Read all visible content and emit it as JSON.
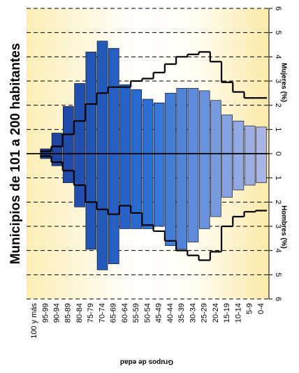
{
  "chart_data": {
    "type": "pyramid",
    "title": "Municipios de 101 a 200 habitantes",
    "x_label": "Grupos de edad",
    "women_label": "Mujeres (%)",
    "men_label": "Hombres (%)",
    "categories": [
      "100 y más",
      "95-99",
      "90-94",
      "85-89",
      "80-84",
      "75-79",
      "70-74",
      "65-69",
      "60-64",
      "55-59",
      "50-54",
      "45-49",
      "40-44",
      "35-39",
      "30-34",
      "25-29",
      "20-24",
      "15-19",
      "10-14",
      "5-9",
      "0-4"
    ],
    "women": {
      "values": [
        0,
        0.2,
        0.85,
        1.95,
        2.9,
        4.2,
        4.65,
        4.35,
        2.85,
        2.65,
        2.25,
        2.1,
        2.5,
        2.7,
        2.7,
        2.6,
        2.2,
        1.6,
        1.35,
        1.15,
        1.1
      ],
      "reference": [
        null,
        0.1,
        0.3,
        0.8,
        1.35,
        2.05,
        2.5,
        2.75,
        2.75,
        3.0,
        3.1,
        3.35,
        3.7,
        4.0,
        4.1,
        4.2,
        3.8,
        2.95,
        2.55,
        2.3,
        2.3
      ]
    },
    "men": {
      "values": [
        0,
        0.2,
        0.5,
        1.2,
        2.2,
        3.95,
        4.8,
        4.55,
        3.1,
        3.1,
        3.1,
        3.0,
        3.8,
        3.95,
        3.65,
        3.1,
        2.6,
        1.8,
        1.5,
        1.3,
        1.2
      ],
      "reference": [
        null,
        0.1,
        0.35,
        0.7,
        1.3,
        2.0,
        2.3,
        2.5,
        2.15,
        2.45,
        2.95,
        3.2,
        3.6,
        4.0,
        4.2,
        4.4,
        4.05,
        3.0,
        2.6,
        2.4,
        2.35
      ]
    },
    "colors": [
      "#1b3a96",
      "#2b6fd4",
      "#aab6e6"
    ],
    "reference_color": "#000000",
    "ylim": [
      -6,
      6
    ],
    "yticks": [
      {
        "value": -6,
        "label": "6"
      },
      {
        "value": -5,
        "label": "5"
      },
      {
        "value": -4,
        "label": "4"
      },
      {
        "value": -3,
        "label": "3"
      },
      {
        "value": -2,
        "label": "2"
      },
      {
        "value": -1,
        "label": "1"
      },
      0,
      1,
      2,
      3,
      4,
      5,
      6
    ],
    "grid": true
  }
}
